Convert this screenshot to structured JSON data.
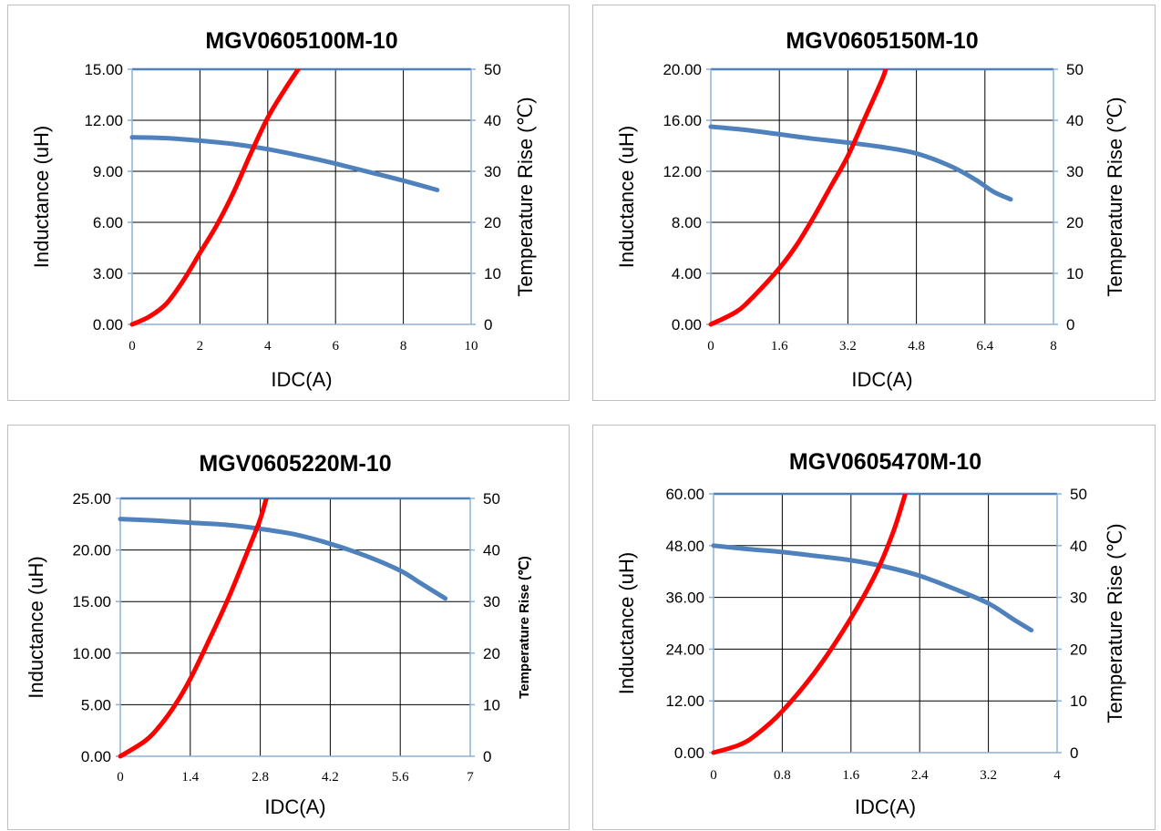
{
  "chart_data": [
    {
      "type": "line",
      "title": "MGV0605100M-10",
      "xlabel": "IDC(A)",
      "ylabel": "Inductance (uH)",
      "y2label": "Temperature Rise (℃)",
      "xlim": [
        0,
        10
      ],
      "xticks": [
        "0",
        "2",
        "4",
        "6",
        "8",
        "10"
      ],
      "ylim": [
        0,
        15
      ],
      "yticks": [
        "0.00",
        "3.00",
        "6.00",
        "9.00",
        "12.00",
        "15.00"
      ],
      "y2lim": [
        0,
        50
      ],
      "y2ticks": [
        "0",
        "10",
        "20",
        "30",
        "40",
        "50"
      ],
      "grid": true,
      "series": [
        {
          "color": "#4f81bd",
          "axis": "left",
          "x": [
            0,
            1,
            2,
            3,
            4,
            5,
            6,
            7,
            8,
            9
          ],
          "y": [
            11.0,
            10.95,
            10.8,
            10.6,
            10.3,
            9.9,
            9.45,
            8.95,
            8.45,
            7.9
          ]
        },
        {
          "color": "#ff0000",
          "axis": "right",
          "x": [
            0,
            0.5,
            1.0,
            1.5,
            2.0,
            2.5,
            3.0,
            3.5,
            4.0,
            4.5,
            5.0
          ],
          "y": [
            0,
            1.5,
            4,
            8.5,
            14,
            19.5,
            26,
            33.5,
            40.5,
            46,
            51
          ]
        }
      ]
    },
    {
      "type": "line",
      "title": "MGV0605150M-10",
      "xlabel": "IDC(A)",
      "ylabel": "Inductance (uH)",
      "y2label": "Temperature Rise (℃)",
      "xlim": [
        0,
        8
      ],
      "xticks": [
        "0",
        "1.6",
        "3.2",
        "4.8",
        "6.4",
        "8"
      ],
      "ylim": [
        0,
        20
      ],
      "yticks": [
        "0.00",
        "4.00",
        "8.00",
        "12.00",
        "16.00",
        "20.00"
      ],
      "y2lim": [
        0,
        50
      ],
      "y2ticks": [
        "0",
        "10",
        "20",
        "30",
        "40",
        "50"
      ],
      "grid": true,
      "series": [
        {
          "color": "#4f81bd",
          "axis": "left",
          "x": [
            0,
            0.8,
            1.6,
            2.4,
            3.2,
            4.0,
            4.8,
            5.6,
            6.2,
            6.6,
            7.0
          ],
          "y": [
            15.5,
            15.25,
            14.9,
            14.55,
            14.25,
            13.9,
            13.4,
            12.4,
            11.3,
            10.4,
            9.8
          ]
        },
        {
          "color": "#ff0000",
          "axis": "right",
          "x": [
            0,
            0.6,
            1.0,
            1.6,
            2.0,
            2.4,
            2.8,
            3.2,
            3.6,
            4.0,
            4.1
          ],
          "y": [
            0,
            2.5,
            5.5,
            11,
            15.5,
            21,
            27,
            33,
            40.5,
            48,
            50.5
          ]
        }
      ]
    },
    {
      "type": "line",
      "title": "MGV0605220M-10",
      "xlabel": "IDC(A)",
      "ylabel": "Inductance (uH)",
      "y2label": "Temperature Rise (℃)",
      "xlim": [
        0,
        7
      ],
      "xticks": [
        "0",
        "1.4",
        "2.8",
        "4.2",
        "5.6",
        "7"
      ],
      "ylim": [
        0,
        25
      ],
      "yticks": [
        "0.00",
        "5.00",
        "10.00",
        "15.00",
        "20.00",
        "25.00"
      ],
      "y2lim": [
        0,
        50
      ],
      "y2ticks": [
        "0",
        "10",
        "20",
        "30",
        "40",
        "50"
      ],
      "grid": true,
      "series": [
        {
          "color": "#4f81bd",
          "axis": "left",
          "x": [
            0,
            0.7,
            1.4,
            2.1,
            2.8,
            3.5,
            4.2,
            4.9,
            5.6,
            6.0,
            6.5
          ],
          "y": [
            23.0,
            22.85,
            22.65,
            22.45,
            22.05,
            21.5,
            20.6,
            19.45,
            18.0,
            16.8,
            15.3
          ]
        },
        {
          "color": "#ff0000",
          "axis": "right",
          "x": [
            0,
            0.5,
            0.8,
            1.1,
            1.4,
            1.8,
            2.2,
            2.6,
            2.8,
            2.95
          ],
          "y": [
            0,
            3,
            6,
            10,
            15,
            23,
            31.5,
            41,
            46,
            51
          ]
        }
      ]
    },
    {
      "type": "line",
      "title": "MGV0605470M-10",
      "xlabel": "IDC(A)",
      "ylabel": "Inductance (uH)",
      "y2label": "Temperature Rise (℃)",
      "xlim": [
        0,
        4
      ],
      "xticks": [
        "0",
        "0.8",
        "1.6",
        "2.4",
        "3.2",
        "4"
      ],
      "ylim": [
        0,
        60
      ],
      "yticks": [
        "0.00",
        "12.00",
        "24.00",
        "36.00",
        "48.00",
        "60.00"
      ],
      "y2lim": [
        0,
        50
      ],
      "y2ticks": [
        "0",
        "10",
        "20",
        "30",
        "40",
        "50"
      ],
      "grid": true,
      "series": [
        {
          "color": "#4f81bd",
          "axis": "left",
          "x": [
            0,
            0.4,
            0.8,
            1.2,
            1.6,
            2.0,
            2.4,
            2.8,
            3.2,
            3.5,
            3.7
          ],
          "y": [
            48.0,
            47.2,
            46.5,
            45.6,
            44.6,
            43.1,
            41.0,
            38.0,
            34.6,
            30.8,
            28.4
          ]
        },
        {
          "color": "#ff0000",
          "axis": "right",
          "x": [
            0,
            0.3,
            0.5,
            0.8,
            1.2,
            1.6,
            1.9,
            2.1,
            2.25
          ],
          "y": [
            0,
            1.5,
            3.5,
            8,
            16,
            26,
            35,
            43,
            51
          ]
        }
      ]
    }
  ]
}
